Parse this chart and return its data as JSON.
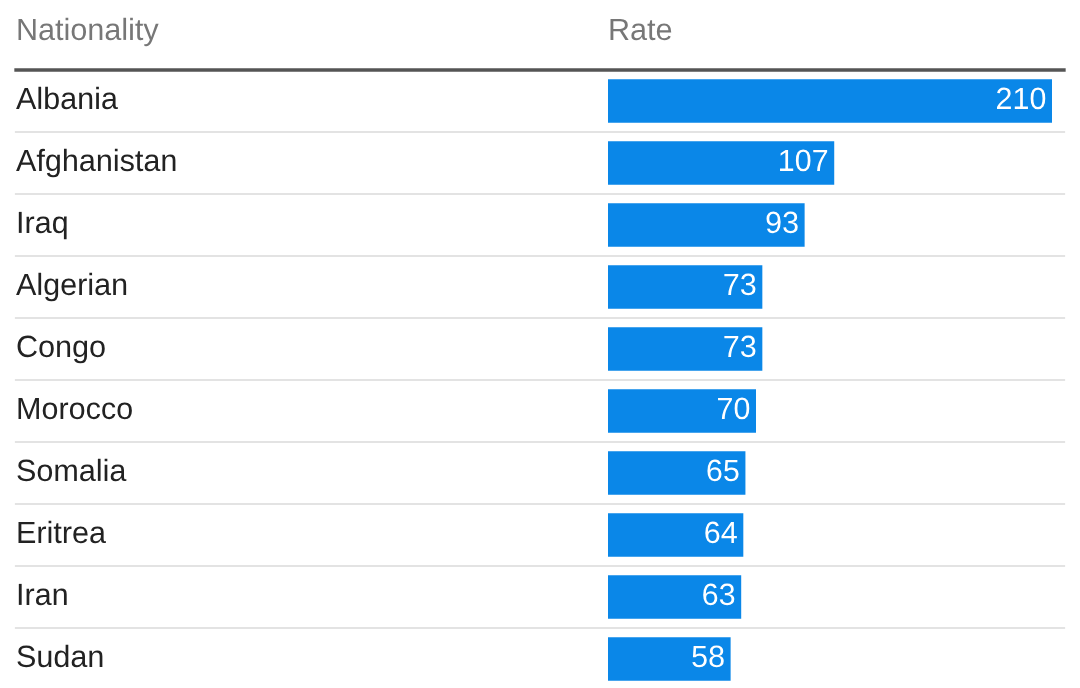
{
  "chart_data": {
    "type": "bar",
    "orientation": "horizontal",
    "ylabel": "Nationality",
    "xlabel": "Rate",
    "categories": [
      "Albania",
      "Afghanistan",
      "Iraq",
      "Algerian",
      "Congo",
      "Morocco",
      "Somalia",
      "Eritrea",
      "Iran",
      "Sudan"
    ],
    "values": [
      210,
      107,
      93,
      73,
      73,
      70,
      65,
      64,
      63,
      58
    ],
    "color": "#0a87e8",
    "data_labels": true
  }
}
